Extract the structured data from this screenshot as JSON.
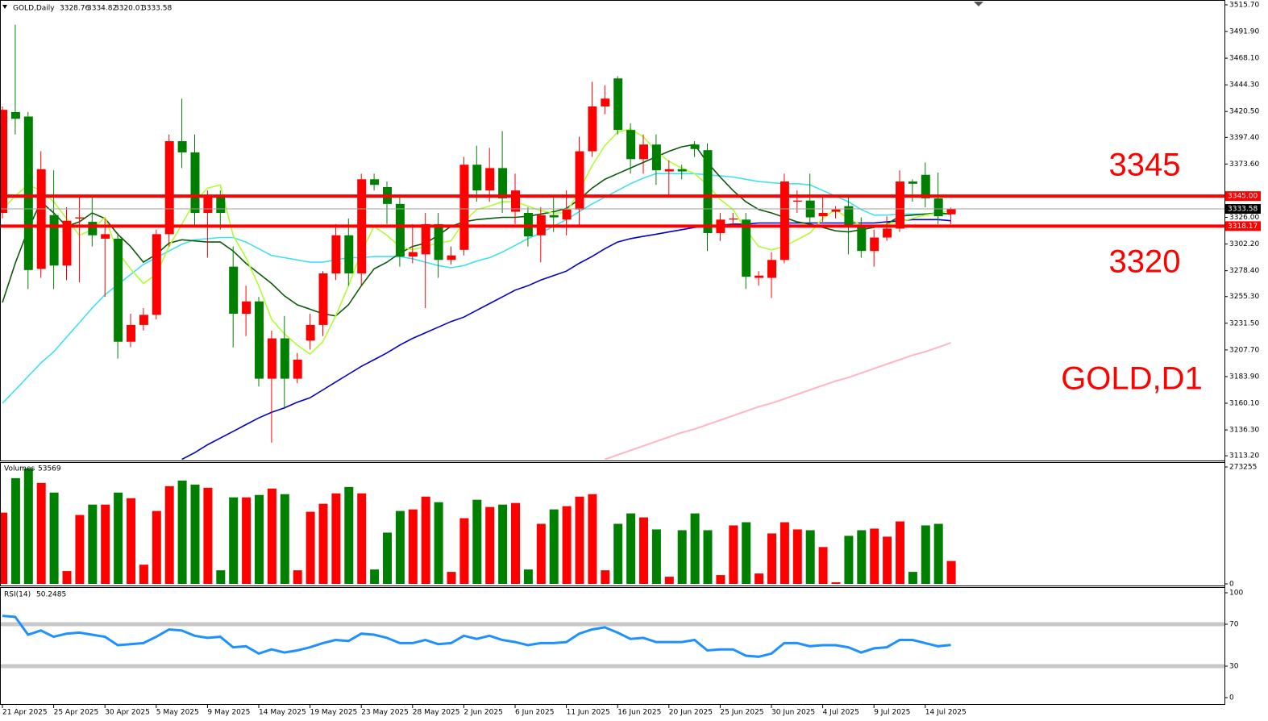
{
  "chart_data": [
    {
      "type": "candlestick",
      "title": "GOLD,Daily",
      "categories": [
        "21 Apr 2025",
        null,
        null,
        null,
        "25 Apr 2025",
        null,
        null,
        null,
        "30 Apr 2025",
        null,
        null,
        null,
        "5 May 2025",
        null,
        null,
        null,
        "9 May 2025",
        null,
        null,
        null,
        "14 May 2025",
        null,
        null,
        null,
        "19 May 2025",
        null,
        null,
        null,
        "23 May 2025",
        null,
        null,
        null,
        "28 May 2025",
        null,
        null,
        null,
        "2 Jun 2025",
        null,
        null,
        null,
        "6 Jun 2025",
        null,
        null,
        null,
        "11 Jun 2025",
        null,
        null,
        null,
        "16 Jun 2025",
        null,
        null,
        null,
        "20 Jun 2025",
        null,
        null,
        null,
        "25 Jun 2025",
        null,
        null,
        null,
        "30 Jun 2025",
        null,
        null,
        null,
        "4 Jul 2025",
        null,
        null,
        null,
        "9 Jul 2025",
        null,
        null,
        null,
        "14 Jul 2025",
        null,
        null
      ],
      "open": [
        3330,
        3420,
        3416,
        3280,
        3328,
        3283,
        3325,
        3322,
        3307,
        3307,
        3215,
        3230,
        3239,
        3311,
        3394,
        3384,
        3330,
        3344,
        3282,
        3240,
        3251,
        3182,
        3218,
        3182,
        3216,
        3230,
        3276,
        3310,
        3276,
        3360,
        3353,
        3338,
        3291,
        3293,
        3320,
        3288,
        3297,
        3373,
        3350,
        3370,
        3331,
        3330,
        3310,
        3328,
        3324,
        3333,
        3385,
        3425,
        3450,
        3404,
        3378,
        3391,
        3367,
        3369,
        3391,
        3386,
        3312,
        3324,
        3324,
        3272,
        3272,
        3288,
        3340,
        3341,
        3327,
        3331,
        3336,
        3318,
        3296,
        3308,
        3316,
        3358,
        3364,
        3343,
        3328.76
      ],
      "high": [
        3425,
        3498,
        3420,
        3385,
        3368,
        3335,
        3345,
        3345,
        3325,
        3312,
        3240,
        3245,
        3315,
        3400,
        3432,
        3400,
        3350,
        3350,
        3300,
        3265,
        3255,
        3225,
        3238,
        3205,
        3240,
        3278,
        3320,
        3325,
        3365,
        3365,
        3358,
        3345,
        3320,
        3330,
        3330,
        3300,
        3380,
        3390,
        3388,
        3403,
        3365,
        3335,
        3335,
        3345,
        3350,
        3398,
        3447,
        3444,
        3452,
        3410,
        3400,
        3400,
        3377,
        3373,
        3394,
        3392,
        3330,
        3330,
        3330,
        3278,
        3295,
        3365,
        3350,
        3365,
        3345,
        3336,
        3345,
        3326,
        3315,
        3327,
        3368,
        3360,
        3375,
        3366,
        3334.82
      ],
      "low": [
        3325,
        3400,
        3262,
        3272,
        3262,
        3270,
        3268,
        3300,
        3255,
        3200,
        3210,
        3225,
        3235,
        3300,
        3370,
        3318,
        3290,
        3315,
        3210,
        3220,
        3175,
        3125,
        3155,
        3178,
        3208,
        3220,
        3270,
        3265,
        3265,
        3350,
        3320,
        3282,
        3285,
        3245,
        3272,
        3284,
        3292,
        3340,
        3340,
        3330,
        3320,
        3300,
        3286,
        3313,
        3310,
        3318,
        3380,
        3418,
        3400,
        3365,
        3365,
        3355,
        3345,
        3360,
        3380,
        3296,
        3305,
        3318,
        3262,
        3265,
        3254,
        3285,
        3330,
        3320,
        3322,
        3325,
        3293,
        3290,
        3282,
        3305,
        3313,
        3340,
        3335,
        3320,
        3320.01
      ],
      "close": [
        3422,
        3414,
        3279,
        3369,
        3283,
        3323,
        3326,
        3310,
        3311,
        3215,
        3230,
        3239,
        3311,
        3394,
        3384,
        3330,
        3344,
        3330,
        3240,
        3251,
        3182,
        3218,
        3182,
        3199,
        3230,
        3276,
        3310,
        3276,
        3360,
        3355,
        3338,
        3291,
        3295,
        3320,
        3288,
        3292,
        3373,
        3350,
        3370,
        3343,
        3350,
        3309,
        3328,
        3326,
        3333,
        3385,
        3425,
        3432,
        3404,
        3378,
        3391,
        3368,
        3369,
        3367,
        3387,
        3312,
        3324,
        3325,
        3273,
        3274,
        3288,
        3358,
        3341,
        3326,
        3330,
        3333,
        3318,
        3296,
        3308,
        3316,
        3358,
        3356,
        3343,
        3327,
        3333.58
      ],
      "up_color": "#ff0000",
      "down_color": "#008000",
      "series": [
        {
          "color": "#ffb6c1",
          "values": [
            null,
            null,
            null,
            null,
            null,
            null,
            null,
            null,
            null,
            null,
            null,
            null,
            null,
            null,
            null,
            null,
            null,
            null,
            null,
            null,
            null,
            null,
            null,
            null,
            null,
            null,
            null,
            null,
            null,
            null,
            null,
            null,
            null,
            null,
            null,
            null,
            null,
            null,
            null,
            null,
            null,
            null,
            null,
            null,
            null,
            null,
            null,
            3110,
            3114,
            3118,
            3122,
            3126,
            3130,
            3134,
            3137,
            3141,
            3145,
            3149,
            3153,
            3157,
            3160,
            3164,
            3168,
            3172,
            3176,
            3180,
            3183,
            3187,
            3191,
            3195,
            3199,
            3203,
            3206,
            3210,
            3214
          ]
        },
        {
          "color": "#0000cd",
          "values": [
            null,
            null,
            null,
            null,
            null,
            null,
            null,
            null,
            null,
            null,
            null,
            null,
            null,
            null,
            3110,
            3116,
            3123,
            3129,
            3135,
            3141,
            3147,
            3152,
            3156,
            3161,
            3165,
            3172,
            3179,
            3186,
            3193,
            3199,
            3205,
            3212,
            3218,
            3223,
            3228,
            3233,
            3237,
            3243,
            3249,
            3255,
            3261,
            3265,
            3270,
            3274,
            3278,
            3285,
            3291,
            3298,
            3304,
            3307,
            3309,
            3311,
            3313,
            3315,
            3317,
            3318,
            3319,
            3320,
            3320,
            3321,
            3321,
            3321,
            3321,
            3321,
            3321,
            3321,
            3321,
            3321,
            3321,
            3322,
            3323,
            3324,
            3324,
            3324,
            3323
          ]
        },
        {
          "color": "#3fe0f0",
          "values": [
            3160,
            3172,
            3184,
            3196,
            3206,
            3219,
            3232,
            3245,
            3257,
            3266,
            3275,
            3284,
            3290,
            3296,
            3302,
            3306,
            3307,
            3308,
            3308,
            3304,
            3298,
            3292,
            3290,
            3288,
            3286,
            3286,
            3288,
            3290,
            3290,
            3291,
            3291,
            3291,
            3289,
            3286,
            3283,
            3281,
            3283,
            3287,
            3290,
            3295,
            3301,
            3307,
            3312,
            3318,
            3324,
            3331,
            3338,
            3344,
            3350,
            3356,
            3361,
            3365,
            3365,
            3365,
            3365,
            3364,
            3363,
            3362,
            3360,
            3358,
            3357,
            3356,
            3356,
            3355,
            3350,
            3345,
            3340,
            3333,
            3328,
            3328,
            3329,
            3329,
            3329,
            3329,
            3329
          ]
        },
        {
          "color": "#0b5a0b",
          "values": [
            3250,
            3285,
            3315,
            3340,
            3330,
            3318,
            3322,
            3330,
            3325,
            3311,
            3300,
            3286,
            3293,
            3303,
            3306,
            3305,
            3304,
            3304,
            3296,
            3285,
            3276,
            3267,
            3256,
            3248,
            3244,
            3240,
            3238,
            3248,
            3265,
            3280,
            3286,
            3294,
            3300,
            3303,
            3310,
            3318,
            3322,
            3324,
            3325,
            3326,
            3326,
            3327,
            3329,
            3331,
            3334,
            3342,
            3352,
            3360,
            3365,
            3370,
            3375,
            3380,
            3385,
            3389,
            3391,
            3375,
            3362,
            3350,
            3340,
            3333,
            3330,
            3326,
            3322,
            3320,
            3317,
            3314,
            3313,
            3315,
            3317,
            3320,
            3327,
            3328,
            3329,
            3330,
            3329
          ]
        },
        {
          "color": "#adff2f",
          "values": [
            3333,
            3345,
            3355,
            3350,
            3340,
            3325,
            3310,
            3315,
            3326,
            3295,
            3280,
            3267,
            3275,
            3300,
            3320,
            3340,
            3352,
            3355,
            3310,
            3290,
            3265,
            3235,
            3222,
            3212,
            3204,
            3215,
            3238,
            3265,
            3295,
            3318,
            3310,
            3300,
            3297,
            3300,
            3303,
            3305,
            3322,
            3333,
            3336,
            3340,
            3340,
            3336,
            3332,
            3330,
            3330,
            3350,
            3372,
            3390,
            3402,
            3405,
            3398,
            3385,
            3376,
            3370,
            3365,
            3355,
            3342,
            3333,
            3315,
            3300,
            3297,
            3300,
            3306,
            3312,
            3325,
            3333,
            3325,
            3319,
            3318,
            3320,
            3322,
            3325,
            3328,
            3330,
            3332
          ]
        }
      ],
      "hlines": [
        {
          "value": 3345,
          "label": "3345.00",
          "color": "#ff0000"
        },
        {
          "value": 3318.17,
          "label": "3318.17",
          "color": "#ff0000"
        }
      ],
      "annotations": [
        "3345",
        "3320",
        "GOLD,D1"
      ],
      "ylim": [
        3109,
        3520
      ],
      "yticks": [
        {
          "value": 3515.7,
          "label": "3515.70"
        },
        {
          "value": 3491.9,
          "label": "3491.90"
        },
        {
          "value": 3468.1,
          "label": "3468.10"
        },
        {
          "value": 3444.3,
          "label": "3444.30"
        },
        {
          "value": 3420.5,
          "label": "3420.50"
        },
        {
          "value": 3397.4,
          "label": "3397.40"
        },
        {
          "value": 3373.6,
          "label": "3373.60"
        },
        {
          "value": 3326,
          "label": "3326.00"
        },
        {
          "value": 3302.2,
          "label": "3302.20"
        },
        {
          "value": 3278.4,
          "label": "3278.40"
        },
        {
          "value": 3255.3,
          "label": "3255.30"
        },
        {
          "value": 3231.5,
          "label": "3231.50"
        },
        {
          "value": 3207.7,
          "label": "3207.70"
        },
        {
          "value": 3183.9,
          "label": "3183.90"
        },
        {
          "value": 3160.1,
          "label": "3160.10"
        },
        {
          "value": 3136.3,
          "label": "3136.30"
        },
        {
          "value": 3113.2,
          "label": "3113.20"
        }
      ]
    },
    {
      "type": "bar",
      "title": "Volumes",
      "values": [
        166600,
        247100,
        269600,
        235900,
        213400,
        30000,
        161000,
        185300,
        185300,
        213400,
        200300,
        44900,
        170400,
        228400,
        241500,
        232100,
        224600,
        31800,
        202200,
        202200,
        207800,
        222800,
        209700,
        31800,
        168500,
        187200,
        211500,
        226500,
        211500,
        33700,
        119800,
        170400,
        174100,
        204000,
        190900,
        28100,
        153500,
        196600,
        179700,
        185300,
        189100,
        33700,
        140400,
        174100,
        181600,
        204000,
        209700,
        31800,
        140400,
        164700,
        155400,
        127300,
        16800,
        125400,
        164700,
        125400,
        20600,
        136700,
        144100,
        24300,
        117900,
        144100,
        127300,
        125400,
        86100,
        3700,
        112300,
        125400,
        129200,
        110400,
        146000,
        28100,
        136700,
        140400,
        53569
      ],
      "ylim": [
        0,
        273255
      ],
      "yticks": [
        0,
        273255
      ]
    },
    {
      "type": "line",
      "title": "RSI(14)",
      "color": "#1e90ff",
      "values": [
        78,
        77,
        60,
        64,
        58,
        61,
        62,
        60,
        58,
        50,
        51,
        52,
        58,
        65,
        64,
        59,
        57,
        58,
        48,
        49,
        42,
        46,
        43,
        45,
        48,
        52,
        55,
        54,
        61,
        60,
        57,
        52,
        52,
        55,
        51,
        52,
        59,
        56,
        59,
        55,
        53,
        50,
        52,
        52,
        53,
        61,
        65,
        67,
        62,
        56,
        57,
        53,
        53,
        53,
        55,
        45,
        46,
        46,
        40,
        39,
        42,
        52,
        52,
        49,
        50,
        50,
        48,
        43,
        47,
        48,
        55,
        55,
        52,
        49,
        50.2485
      ],
      "levels": [
        70,
        30
      ],
      "ylim": [
        0,
        100
      ],
      "yticks": [
        0,
        30,
        70,
        100
      ]
    }
  ]
}
